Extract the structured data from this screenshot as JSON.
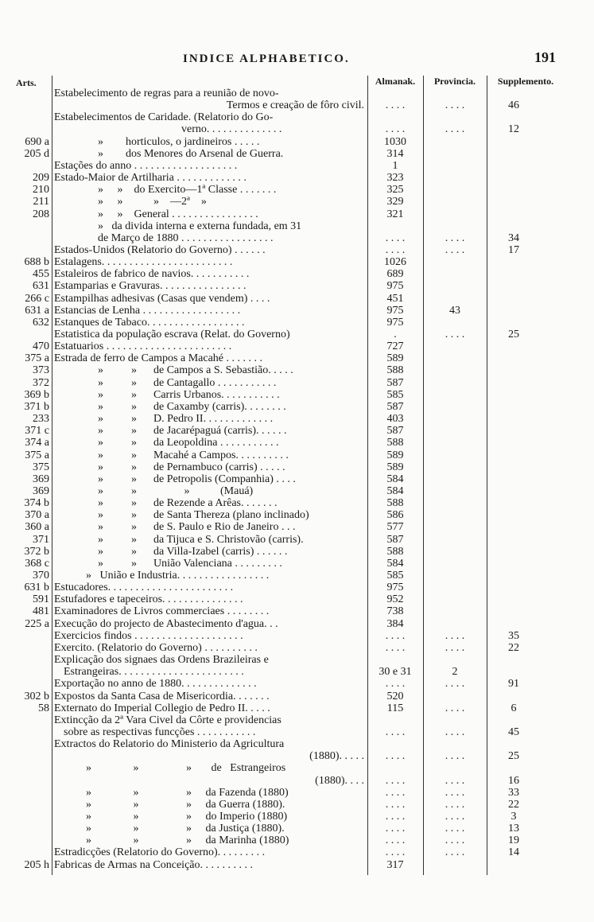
{
  "header": {
    "title": "INDICE ALPHABETICO.",
    "page_number": "191"
  },
  "columns": {
    "arts": "Arts.",
    "almanak": "Almanak.",
    "provincia": "Provincia.",
    "supplemento": "Supplemento."
  },
  "rows": [
    {
      "text": "Estabelecimento de regras para a reunião de novo-"
    },
    {
      "text": "Termos e creação de fôro civil.",
      "almanak": ". . . .",
      "provincia": ". . . .",
      "supplemento": "46"
    },
    {
      "text": "Estabelecimentos de Caridade. (Relatorio do Go-"
    },
    {
      "text": "verno. . . . . . . . . . . . . .",
      "almanak": ". . . .",
      "provincia": ". . . .",
      "supplemento": "12"
    },
    {
      "art": "690 a",
      "text": "»        horticulos, o jardineiros . . . . .",
      "almanak": "1030"
    },
    {
      "art": "205 d",
      "text": "»        dos Menores do Arsenal de Guerra.",
      "almanak": "314"
    },
    {
      "text": "Estações do anno . . . . . . . . . . . . . . . . . . .",
      "almanak": "1"
    },
    {
      "art": "209",
      "text": "Estado-Maior de Artilharia . . . . . . . . . . . . .",
      "almanak": "323"
    },
    {
      "art": "210",
      "text": "»     »    do Exercito—1ª Classe . . . . . . .",
      "almanak": "325"
    },
    {
      "art": "211",
      "text": "»     »           »    —2ª    »",
      "almanak": "329"
    },
    {
      "art": "208",
      "text": "»     »    General . . . . . . . . . . . . . . . .",
      "almanak": "321"
    },
    {
      "text": "»   da divida interna e externa fundada, em 31"
    },
    {
      "text": "de Março de 1880 . . . . . . . . . . . . . . . . .",
      "almanak": ". . . .",
      "provincia": ". . . .",
      "supplemento": "34"
    },
    {
      "text": "Estados-Unidos (Relatorio do Governo) . . . . . .",
      "almanak": ". . . .",
      "provincia": ". . . .",
      "supplemento": "17"
    },
    {
      "art": "688 b",
      "text": "Estalagens. . . . . . . . . . . . . . . . . . . . . . . .",
      "almanak": "1026"
    },
    {
      "art": "455",
      "text": "Estaleiros de fabrico de navios. . . . . . . . . . .",
      "almanak": "689"
    },
    {
      "art": "631",
      "text": "Estamparias e Gravuras. . . . . . . . . . . . . . . .",
      "almanak": "975"
    },
    {
      "art": "266 c",
      "text": "Estampilhas adhesivas (Casas que vendem) . . . .",
      "almanak": "451"
    },
    {
      "art": "631 a",
      "text": "Estancias de Lenha . . . . . . . . . . . . . . . . . .",
      "almanak": "975",
      "provincia": "43"
    },
    {
      "art": "632",
      "text": "Estanques de Tabaco. . . . . . . . . . . . . . . . . .",
      "almanak": "975"
    },
    {
      "text": "Estatistica da população escrava (Relat. do Governo)",
      "almanak": ".",
      "provincia": ". . . .",
      "supplemento": "25"
    },
    {
      "art": "470",
      "text": "Estatuarios . . . . . . . . . . . . . . . . . . . . . . .",
      "almanak": "727"
    },
    {
      "art": "375 a",
      "text": "Estrada de ferro de Campos a Macahé . . . . . . .",
      "almanak": "589"
    },
    {
      "art": "373",
      "text": "»          »      de Campos a S. Sebastião. . . . .",
      "almanak": "588"
    },
    {
      "art": "372",
      "text": "»          »      de Cantagallo . . . . . . . . . . .",
      "almanak": "587"
    },
    {
      "art": "369 b",
      "text": "»          »      Carris Urbanos. . . . . . . . . . .",
      "almanak": "585"
    },
    {
      "art": "371 b",
      "text": "»          »      de Caxamby (carris). . . . . . . .",
      "almanak": "587"
    },
    {
      "art": "233",
      "text": "»          »      D. Pedro II. . . . . . . . . . . . .",
      "almanak": "403"
    },
    {
      "art": "371 c",
      "text": "»          »      de Jacarépaguá (carris). . . . . .",
      "almanak": "587"
    },
    {
      "art": "374 a",
      "text": "»          »      da Leopoldina . . . . . . . . . . .",
      "almanak": "588"
    },
    {
      "art": "375 a",
      "text": "»          »      Macahé a Campos. . . . . . . . . .",
      "almanak": "589"
    },
    {
      "art": "375",
      "text": "»          »      de Pernambuco (carris) . . . . .",
      "almanak": "589"
    },
    {
      "art": "369",
      "text": "»          »      de Petropolis (Companhia) . . . .",
      "almanak": "584"
    },
    {
      "art": "369",
      "text": "»          »                 »           (Mauá)",
      "almanak": "584"
    },
    {
      "art": "374 b",
      "text": "»          »      de Rezende a Arêas. . . . . . .",
      "almanak": "588"
    },
    {
      "art": "370 a",
      "text": "»          »      de Santa Thereza (plano inclinado)",
      "almanak": "586"
    },
    {
      "art": "360 a",
      "text": "»          »      de S. Paulo e Rio de Janeiro . . .",
      "almanak": "577"
    },
    {
      "art": "371",
      "text": "»          »      da Tijuca e S. Christovão (carris).",
      "almanak": "587"
    },
    {
      "art": "372 b",
      "text": "»          »      da Villa-Izabel (carris) . . . . . .",
      "almanak": "588"
    },
    {
      "art": "368 c",
      "text": "»          »      União Valenciana . . . . . . . . .",
      "almanak": "584"
    },
    {
      "art": "370",
      "text": "»   União e Industria. . . . . . . . . . . . . . . . .",
      "almanak": "585"
    },
    {
      "art": "631 b",
      "text": "Estucadores. . . . . . . . . . . . . . . . . . . . . . .",
      "almanak": "975"
    },
    {
      "art": "591",
      "text": "Estufadores e tapeceiros. . . . . . . . . . . . . . .",
      "almanak": "952"
    },
    {
      "art": "481",
      "text": "Examinadores de Livros commerciaes . . . . . . . .",
      "almanak": "738"
    },
    {
      "art": "225 a",
      "text": "Execução do projecto de Abastecimento d'agua. . .",
      "almanak": "384"
    },
    {
      "text": "Exercicios findos . . . . . . . . . . . . . . . . . . . .",
      "almanak": ". . . .",
      "provincia": ". . . .",
      "supplemento": "35"
    },
    {
      "text": "Exercito. (Relatorio do Governo) . . . . . . . . . .",
      "almanak": ". . . .",
      "provincia": ". . . .",
      "supplemento": "22"
    },
    {
      "text": "Explicação dos signaes das Ordens Brazileiras e"
    },
    {
      "text": "Estrangeiras. . . . . . . . . . . . . . . . . . . . . . .",
      "almanak": "30 e 31",
      "provincia": "2"
    },
    {
      "text": "Exportação no anno de 1880. . . . . . . . . . . . . .",
      "almanak": ". . . .",
      "provincia": ". . . .",
      "supplemento": "91"
    },
    {
      "art": "302 b",
      "text": "Expostos da Santa Casa de Misericordia. . . . . . .",
      "almanak": "520"
    },
    {
      "art": "58",
      "text": "Externato do Imperial Collegio de Pedro II. . . . .",
      "almanak": "115",
      "provincia": ". . . .",
      "supplemento": "6"
    },
    {
      "text": "Extincção da 2ª Vara Civel da Côrte e providencias"
    },
    {
      "text": "sobre as respectivas funcções . . . . . . . . . . .",
      "almanak": ". . . .",
      "provincia": ". . . .",
      "supplemento": "45"
    },
    {
      "text": "Extractos do Relatorio do Ministerio da Agricultura"
    },
    {
      "text": "(1880). . . . .",
      "almanak": ". . . .",
      "provincia": ". . . .",
      "supplemento": "25"
    },
    {
      "text": "»               »                 »       de   Estrangeiros"
    },
    {
      "text": "(1880). . . .",
      "almanak": ". . . .",
      "provincia": ". . . .",
      "supplemento": "16"
    },
    {
      "text": "»               »                 »     da Fazenda (1880)",
      "almanak": ". . . .",
      "provincia": ". . . .",
      "supplemento": "33"
    },
    {
      "text": "»               »                 »     da Guerra (1880).",
      "almanak": ". . . .",
      "provincia": ". . . .",
      "supplemento": "22"
    },
    {
      "text": "»               »                 »     do Imperio (1880)",
      "almanak": ". . . .",
      "provincia": ". . . .",
      "supplemento": "3"
    },
    {
      "text": "»               »                 »     da Justiça (1880).",
      "almanak": ". . . .",
      "provincia": ". . . .",
      "supplemento": "13"
    },
    {
      "text": "»               »                 »     da Marinha (1880)",
      "almanak": ". . . .",
      "provincia": ". . . .",
      "supplemento": "19"
    },
    {
      "text": "Estradicções (Relatorio do Governo). . . . . . . . .",
      "almanak": ". . . .",
      "provincia": ". . . .",
      "supplemento": "14"
    },
    {
      "art": "205 h",
      "text": "Fabricas de Armas na Conceição. . . . . . . . . .",
      "almanak": "317"
    }
  ]
}
